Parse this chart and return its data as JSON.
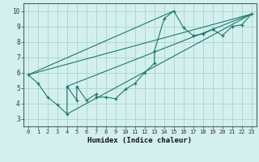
{
  "xlabel": "Humidex (Indice chaleur)",
  "bg_color": "#d4f0ee",
  "grid_color": "#aed8d4",
  "line_color": "#1a7a6e",
  "xlim": [
    -0.5,
    23.5
  ],
  "ylim": [
    2.5,
    10.5
  ],
  "xticks": [
    0,
    1,
    2,
    3,
    4,
    5,
    6,
    7,
    8,
    9,
    10,
    11,
    12,
    13,
    14,
    15,
    16,
    17,
    18,
    19,
    20,
    21,
    22,
    23
  ],
  "yticks": [
    3,
    4,
    5,
    6,
    7,
    8,
    9,
    10
  ],
  "series": [
    [
      0,
      5.85
    ],
    [
      1,
      5.3
    ],
    [
      2,
      4.4
    ],
    [
      3,
      3.9
    ],
    [
      4,
      3.3
    ],
    [
      4,
      5.1
    ],
    [
      5,
      4.2
    ],
    [
      5,
      5.1
    ],
    [
      6,
      4.2
    ],
    [
      7,
      4.6
    ],
    [
      7,
      4.4
    ],
    [
      8,
      4.4
    ],
    [
      9,
      4.3
    ],
    [
      10,
      4.9
    ],
    [
      11,
      5.3
    ],
    [
      12,
      6.0
    ],
    [
      13,
      6.6
    ],
    [
      13,
      7.4
    ],
    [
      14,
      9.5
    ],
    [
      15,
      10.0
    ],
    [
      16,
      8.9
    ],
    [
      17,
      8.4
    ],
    [
      18,
      8.5
    ],
    [
      19,
      8.8
    ],
    [
      19,
      8.8
    ],
    [
      20,
      8.4
    ],
    [
      21,
      9.0
    ],
    [
      22,
      9.1
    ],
    [
      23,
      9.8
    ]
  ],
  "straight_lines": [
    [
      [
        0,
        5.85
      ],
      [
        15,
        10.0
      ]
    ],
    [
      [
        4,
        5.1
      ],
      [
        23,
        9.8
      ]
    ],
    [
      [
        4,
        3.3
      ],
      [
        23,
        9.8
      ]
    ],
    [
      [
        0,
        5.85
      ],
      [
        23,
        9.8
      ]
    ]
  ]
}
